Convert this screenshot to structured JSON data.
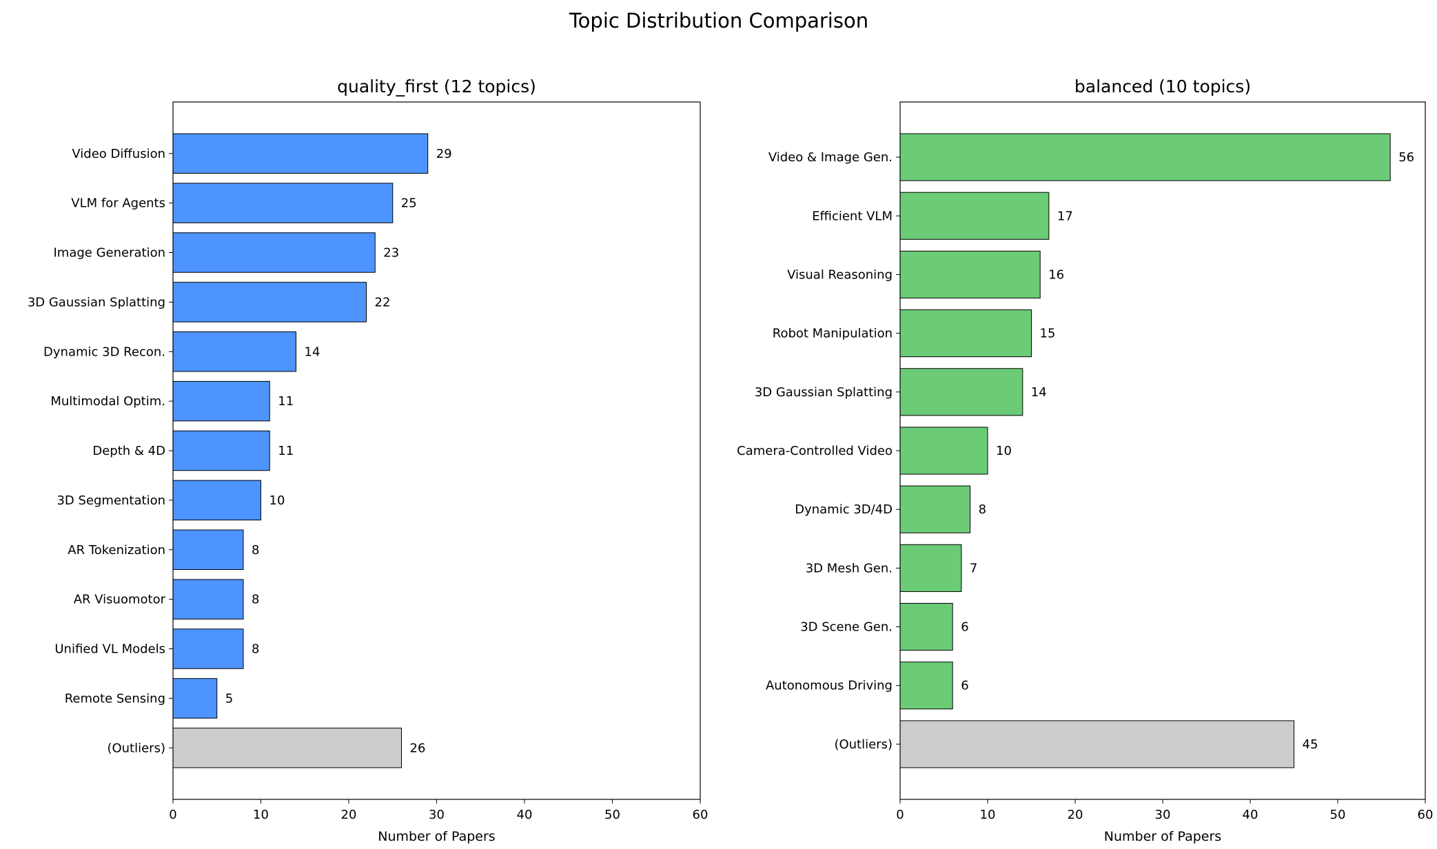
{
  "chart_data": {
    "title": "Topic Distribution Comparison",
    "colors": {
      "left": "#4d94ff",
      "right": "#6bcb77",
      "outliers": "#cccccc",
      "edge": "#000000"
    },
    "charts": [
      {
        "type": "bar",
        "orientation": "horizontal",
        "title": "quality_first (12 topics)",
        "xlabel": "Number of Papers",
        "xlim": [
          0,
          60
        ],
        "xticks": [
          0,
          10,
          20,
          30,
          40,
          50,
          60
        ],
        "categories": [
          "Video Diffusion",
          "VLM for Agents",
          "Image Generation",
          "3D Gaussian Splatting",
          "Dynamic 3D Recon.",
          "Multimodal Optim.",
          "Depth & 4D",
          "3D Segmentation",
          "AR Tokenization",
          "AR Visuomotor",
          "Unified VL Models",
          "Remote Sensing",
          "(Outliers)"
        ],
        "values": [
          29,
          25,
          23,
          22,
          14,
          11,
          11,
          10,
          8,
          8,
          8,
          5,
          26
        ]
      },
      {
        "type": "bar",
        "orientation": "horizontal",
        "title": "balanced (10 topics)",
        "xlabel": "Number of Papers",
        "xlim": [
          0,
          60
        ],
        "xticks": [
          0,
          10,
          20,
          30,
          40,
          50,
          60
        ],
        "categories": [
          "Video & Image Gen.",
          "Efficient VLM",
          "Visual Reasoning",
          "Robot Manipulation",
          "3D Gaussian Splatting",
          "Camera-Controlled Video",
          "Dynamic 3D/4D",
          "3D Mesh Gen.",
          "3D Scene Gen.",
          "Autonomous Driving",
          "(Outliers)"
        ],
        "values": [
          56,
          17,
          16,
          15,
          14,
          10,
          8,
          7,
          6,
          6,
          45
        ]
      }
    ]
  }
}
